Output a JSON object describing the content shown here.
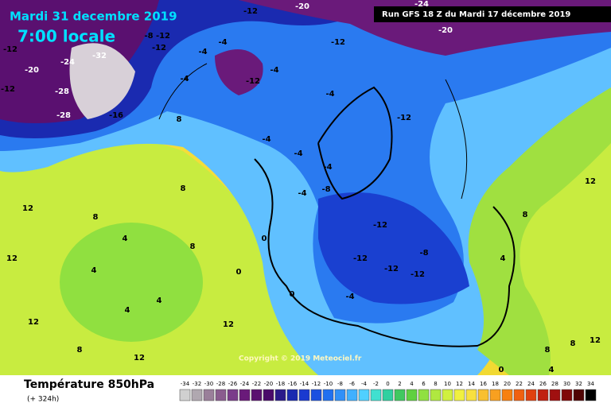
{
  "header": {
    "date": "Mardi 31 decembre 2019",
    "time": "7:00 locale",
    "run": "Run GFS 18 Z du Mardi 17 décembre 2019"
  },
  "footer": {
    "title": "Température 850hPa",
    "lead": "(+ 324h)",
    "copyright": "Copyright © 2019 Meteociel.fr"
  },
  "legend": {
    "ticks": [
      -34,
      -32,
      -30,
      -28,
      -26,
      -24,
      -22,
      -20,
      -18,
      -16,
      -14,
      -12,
      -10,
      -8,
      -6,
      -4,
      -2,
      0,
      2,
      4,
      6,
      8,
      10,
      12,
      14,
      16,
      18,
      20,
      22,
      24,
      26,
      28,
      30,
      32,
      34
    ],
    "colors": [
      "#d0d0d0",
      "#b0a8b0",
      "#9a7f9a",
      "#8a5c8e",
      "#7a3c8a",
      "#6a1a7a",
      "#5a1070",
      "#4a0a6a",
      "#2a1a8a",
      "#1a2ab0",
      "#1a3ad0",
      "#1a50e0",
      "#2070f0",
      "#3090f8",
      "#40b0ff",
      "#50d0ff",
      "#40e0d0",
      "#30d0a0",
      "#40c860",
      "#60d040",
      "#90e040",
      "#b0e840",
      "#d0f040",
      "#f0f040",
      "#f8e040",
      "#f8c030",
      "#f8a020",
      "#f88010",
      "#f06010",
      "#e04010",
      "#c02010",
      "#a01010",
      "#800808",
      "#500404",
      "#000000"
    ]
  },
  "map": {
    "labels": [
      -12,
      -20,
      -24,
      -32,
      -28,
      -16,
      -28,
      -12,
      -8,
      -12,
      -12,
      -4,
      -4,
      -12,
      -20,
      -24,
      -20,
      -12,
      -12,
      -4,
      -4,
      -12,
      -4,
      -4,
      -8,
      -4,
      -12,
      -12,
      -8,
      -12,
      -12,
      -4,
      8,
      8,
      12,
      12,
      8,
      4,
      4,
      4,
      4,
      8,
      12,
      12,
      0,
      0,
      0,
      4,
      8,
      12,
      8,
      8,
      0,
      4,
      12,
      12,
      8,
      -4,
      -4
    ]
  }
}
